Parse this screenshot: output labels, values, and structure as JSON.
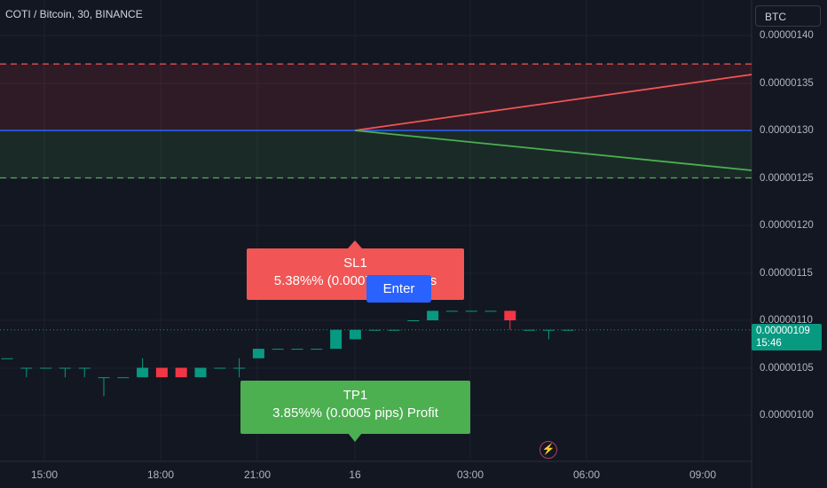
{
  "header": {
    "symbol": "COTI / Bitcoin, 30, BINANCE",
    "currency_button": "BTC"
  },
  "price_axis": {
    "labels": [
      "0.00000140",
      "0.00000135",
      "0.00000130",
      "0.00000125",
      "0.00000120",
      "0.00000115",
      "0.00000110",
      "0.00000105",
      "0.00000100"
    ],
    "last_price": "0.00000109",
    "countdown": "15:46"
  },
  "time_axis": {
    "labels": [
      "15:00",
      "18:00",
      "21:00",
      "16",
      "03:00",
      "06:00",
      "09:00"
    ]
  },
  "position": {
    "sl_title": "SL1",
    "sl_text": "5.38%% (0.0007 pips) Loss",
    "tp_title": "TP1",
    "tp_text": "3.85%% (0.0005 pips) Profit",
    "enter_label": "Enter"
  },
  "colors": {
    "background": "#131722",
    "up": "#089981",
    "down": "#f23645",
    "sl": "#f15555",
    "tp": "#4caf50",
    "entry": "#2962ff"
  },
  "icons": {
    "alert": "lightning-icon"
  },
  "chart_data": {
    "type": "candlestick",
    "symbol": "COTI / Bitcoin",
    "interval": "30",
    "exchange": "BINANCE",
    "y_range": [
      9.7e-07,
      1.43e-06
    ],
    "entry_price": 1.3e-06,
    "stop_loss_price": 1.37e-06,
    "take_profit_price": 1.25e-06,
    "last_price": 1.09e-06,
    "candles": [
      {
        "o": 1.06,
        "h": 1.06,
        "l": 1.06,
        "c": 1.06
      },
      {
        "o": 1.05,
        "h": 1.05,
        "l": 1.04,
        "c": 1.05
      },
      {
        "o": 1.05,
        "h": 1.05,
        "l": 1.05,
        "c": 1.05
      },
      {
        "o": 1.05,
        "h": 1.05,
        "l": 1.04,
        "c": 1.05
      },
      {
        "o": 1.05,
        "h": 1.05,
        "l": 1.04,
        "c": 1.05
      },
      {
        "o": 1.04,
        "h": 1.04,
        "l": 1.02,
        "c": 1.04
      },
      {
        "o": 1.04,
        "h": 1.04,
        "l": 1.04,
        "c": 1.04
      },
      {
        "o": 1.04,
        "h": 1.06,
        "l": 1.04,
        "c": 1.05
      },
      {
        "o": 1.05,
        "h": 1.05,
        "l": 1.04,
        "c": 1.04
      },
      {
        "o": 1.05,
        "h": 1.05,
        "l": 1.04,
        "c": 1.04
      },
      {
        "o": 1.04,
        "h": 1.05,
        "l": 1.04,
        "c": 1.05
      },
      {
        "o": 1.05,
        "h": 1.05,
        "l": 1.05,
        "c": 1.05
      },
      {
        "o": 1.05,
        "h": 1.06,
        "l": 1.04,
        "c": 1.05
      },
      {
        "o": 1.06,
        "h": 1.07,
        "l": 1.06,
        "c": 1.07
      },
      {
        "o": 1.07,
        "h": 1.07,
        "l": 1.07,
        "c": 1.07
      },
      {
        "o": 1.07,
        "h": 1.07,
        "l": 1.07,
        "c": 1.07
      },
      {
        "o": 1.07,
        "h": 1.07,
        "l": 1.07,
        "c": 1.07
      },
      {
        "o": 1.07,
        "h": 1.09,
        "l": 1.07,
        "c": 1.09
      },
      {
        "o": 1.08,
        "h": 1.09,
        "l": 1.08,
        "c": 1.09
      },
      {
        "o": 1.09,
        "h": 1.09,
        "l": 1.09,
        "c": 1.09
      },
      {
        "o": 1.09,
        "h": 1.09,
        "l": 1.09,
        "c": 1.09
      },
      {
        "o": 1.1,
        "h": 1.1,
        "l": 1.1,
        "c": 1.1
      },
      {
        "o": 1.1,
        "h": 1.11,
        "l": 1.1,
        "c": 1.11
      },
      {
        "o": 1.11,
        "h": 1.11,
        "l": 1.11,
        "c": 1.11
      },
      {
        "o": 1.11,
        "h": 1.11,
        "l": 1.11,
        "c": 1.11
      },
      {
        "o": 1.11,
        "h": 1.11,
        "l": 1.11,
        "c": 1.11
      },
      {
        "o": 1.11,
        "h": 1.11,
        "l": 1.09,
        "c": 1.1
      },
      {
        "o": 1.09,
        "h": 1.09,
        "l": 1.09,
        "c": 1.09
      },
      {
        "o": 1.09,
        "h": 1.09,
        "l": 1.08,
        "c": 1.09
      },
      {
        "o": 1.09,
        "h": 1.09,
        "l": 1.09,
        "c": 1.09
      }
    ]
  }
}
